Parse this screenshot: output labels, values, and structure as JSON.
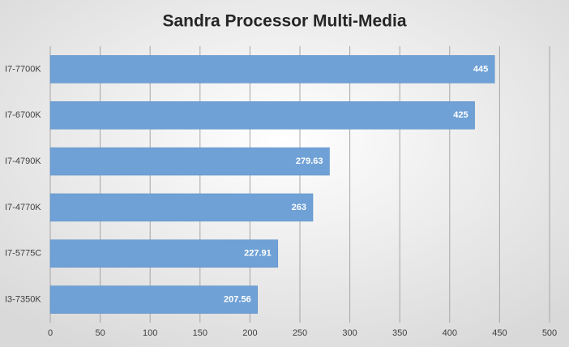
{
  "chart_data": {
    "type": "hbar",
    "title": "Sandra Processor Multi-Media",
    "categories": [
      "I7-7700K",
      "I7-6700K",
      "I7-4790K",
      "I7-4770K",
      "I7-5775C",
      "I3-7350K"
    ],
    "values": [
      445,
      425,
      279.63,
      263,
      227.91,
      207.56
    ],
    "color": "#6fa1d6",
    "xlim": [
      0,
      500
    ],
    "xticks": [
      0,
      50,
      100,
      150,
      200,
      250,
      300,
      350,
      400,
      450,
      500
    ],
    "grid": true
  }
}
